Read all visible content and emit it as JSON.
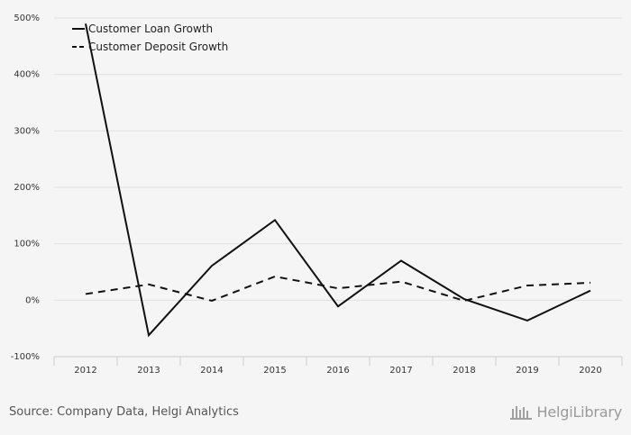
{
  "chart_data": {
    "type": "line",
    "categories": [
      "2012",
      "2013",
      "2014",
      "2015",
      "2016",
      "2017",
      "2018",
      "2019",
      "2020"
    ],
    "series": [
      {
        "name": "Customer Loan Growth",
        "style": "solid",
        "values": [
          490,
          -62,
          61,
          142,
          -11,
          70,
          2,
          -36,
          17
        ]
      },
      {
        "name": "Customer Deposit Growth",
        "style": "dashed",
        "values": [
          11,
          28,
          -1,
          42,
          21,
          33,
          -1,
          26,
          31
        ]
      }
    ],
    "ylim": [
      -100,
      500
    ],
    "yticks": [
      500,
      400,
      300,
      200,
      100,
      0,
      -100
    ],
    "ytick_labels": [
      "500%",
      "400%",
      "300%",
      "200%",
      "100%",
      "0%",
      "-100%"
    ],
    "grid": true,
    "legend_position": "top-left",
    "colors": {
      "line": "#111111",
      "grid": "#e0e0e0",
      "background": "#f5f5f5"
    }
  },
  "footer": {
    "source": "Source: Company Data, Helgi Analytics",
    "brand": "HelgiLibrary"
  }
}
